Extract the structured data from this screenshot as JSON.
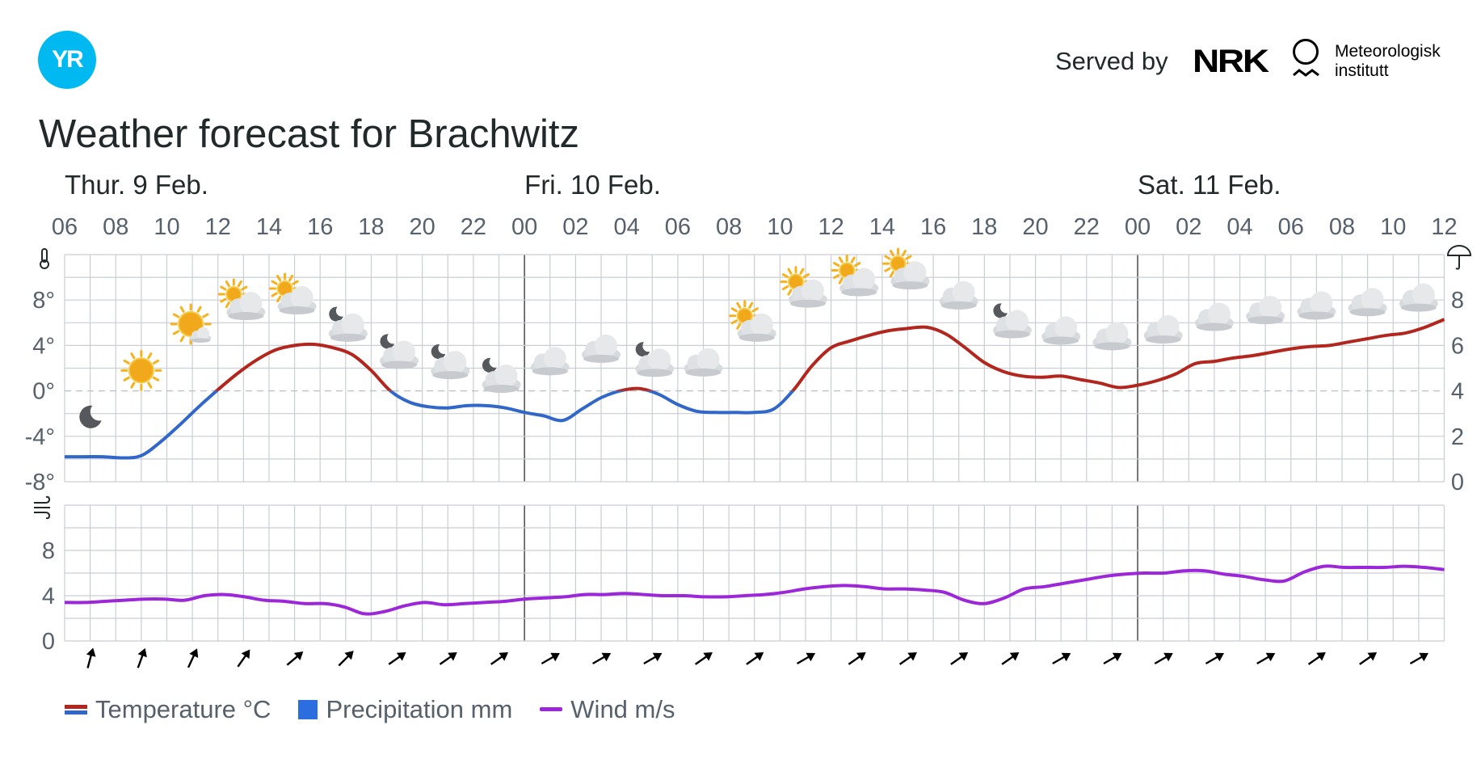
{
  "header": {
    "logo_text": "YR",
    "served_by": "Served by",
    "nrk_logo_text": "NRK",
    "met_line1": "Meteorologisk",
    "met_line2": "institutt"
  },
  "title": "Weather forecast for Brachwitz",
  "legend": [
    {
      "label": "Temperature °C",
      "colors": [
        "#b3261e",
        "#3067c8"
      ]
    },
    {
      "label": "Precipitation mm",
      "colors": [
        "#2c6de0"
      ]
    },
    {
      "label": "Wind m/s",
      "colors": [
        "#9c27d9"
      ]
    }
  ],
  "chart_data": {
    "type": "line",
    "days": [
      {
        "label": "Thur. 9 Feb.",
        "start_hour_index": 0
      },
      {
        "label": "Fri. 10 Feb.",
        "start_hour_index": 18
      },
      {
        "label": "Sat. 11 Feb.",
        "start_hour_index": 42
      }
    ],
    "hour_labels": [
      "06",
      "08",
      "10",
      "12",
      "14",
      "16",
      "18",
      "20",
      "22",
      "00",
      "02",
      "04",
      "06",
      "08",
      "10",
      "12",
      "14",
      "16",
      "18",
      "20",
      "22",
      "00",
      "02",
      "04",
      "06",
      "08",
      "10",
      "12"
    ],
    "temperature": {
      "axis_ticks": [
        "8°",
        "4°",
        "0°",
        "-4°",
        "-8°"
      ],
      "ylim": [
        -8,
        12
      ],
      "colors": {
        "above_zero": "#b3261e",
        "below_zero": "#3067c8"
      },
      "values": [
        -5.8,
        -5.8,
        -5.8,
        -5.9,
        -5.7,
        -4.5,
        -3.0,
        -1.4,
        0.1,
        1.5,
        2.7,
        3.6,
        4.0,
        4.1,
        3.8,
        3.2,
        1.8,
        0,
        -1.0,
        -1.4,
        -1.5,
        -1.3,
        -1.3,
        -1.5,
        -1.9,
        -2.2,
        -2.6,
        -1.6,
        -0.6,
        0,
        0.2,
        -0.3,
        -1.2,
        -1.8,
        -1.9,
        -1.9,
        -1.9,
        -1.6,
        0,
        2.2,
        3.8,
        4.4,
        4.9,
        5.3,
        5.5,
        5.6,
        5.0,
        3.8,
        2.5,
        1.7,
        1.3,
        1.2,
        1.3,
        1.0,
        0.7,
        0.3,
        0.5,
        0.9,
        1.5,
        2.4,
        2.6,
        2.9,
        3.1,
        3.4,
        3.7,
        3.9,
        4.0,
        4.3,
        4.6,
        4.9,
        5.1,
        5.6,
        6.3
      ]
    },
    "precipitation": {
      "axis_ticks": [
        "8",
        "6",
        "4",
        "2",
        "0"
      ],
      "ylim": [
        0,
        10
      ]
    },
    "symbols": [
      {
        "hour_index": 1,
        "type": "clear-night",
        "temp": -3.3
      },
      {
        "hour_index": 3,
        "type": "clear-day",
        "temp": 0.8
      },
      {
        "hour_index": 5,
        "type": "fair-day",
        "temp": 4.6
      },
      {
        "hour_index": 7,
        "type": "partly-cloudy-day",
        "temp": 6.8
      },
      {
        "hour_index": 9,
        "type": "partly-cloudy-day",
        "temp": 7.3
      },
      {
        "hour_index": 11,
        "type": "partly-cloudy-night",
        "temp": 4.9
      },
      {
        "hour_index": 13,
        "type": "partly-cloudy-night",
        "temp": 2.5
      },
      {
        "hour_index": 15,
        "type": "partly-cloudy-night",
        "temp": 1.6
      },
      {
        "hour_index": 17,
        "type": "partly-cloudy-night",
        "temp": 0.4
      },
      {
        "hour_index": 19,
        "type": "cloudy",
        "temp": 1.8
      },
      {
        "hour_index": 21,
        "type": "cloudy",
        "temp": 2.9
      },
      {
        "hour_index": 23,
        "type": "partly-cloudy-night",
        "temp": 1.8
      },
      {
        "hour_index": 25,
        "type": "cloudy",
        "temp": 1.7
      },
      {
        "hour_index": 27,
        "type": "partly-cloudy-day",
        "temp": 4.9
      },
      {
        "hour_index": 29,
        "type": "partly-cloudy-day",
        "temp": 7.9
      },
      {
        "hour_index": 31,
        "type": "partly-cloudy-day",
        "temp": 8.9
      },
      {
        "hour_index": 33,
        "type": "partly-cloudy-day",
        "temp": 9.5
      },
      {
        "hour_index": 35,
        "type": "cloudy",
        "temp": 7.6
      },
      {
        "hour_index": 37,
        "type": "partly-cloudy-night",
        "temp": 5.2
      },
      {
        "hour_index": 39,
        "type": "cloudy",
        "temp": 4.5
      },
      {
        "hour_index": 41,
        "type": "cloudy",
        "temp": 4.0
      },
      {
        "hour_index": 43,
        "type": "cloudy",
        "temp": 4.6
      },
      {
        "hour_index": 45,
        "type": "cloudy",
        "temp": 5.7
      },
      {
        "hour_index": 47,
        "type": "cloudy",
        "temp": 6.3
      },
      {
        "hour_index": 49,
        "type": "cloudy",
        "temp": 6.7
      },
      {
        "hour_index": 51,
        "type": "cloudy",
        "temp": 7.0
      },
      {
        "hour_index": 53,
        "type": "cloudy",
        "temp": 7.4
      }
    ],
    "wind": {
      "axis_ticks": [
        "8",
        "4",
        "0"
      ],
      "ylim": [
        0,
        12
      ],
      "color": "#9c27d9",
      "values": [
        3.4,
        3.4,
        3.5,
        3.6,
        3.7,
        3.7,
        3.6,
        4.0,
        4.1,
        3.9,
        3.6,
        3.5,
        3.3,
        3.3,
        3.0,
        2.4,
        2.6,
        3.1,
        3.4,
        3.2,
        3.3,
        3.4,
        3.5,
        3.7,
        3.8,
        3.9,
        4.1,
        4.1,
        4.2,
        4.1,
        4.0,
        4.0,
        3.9,
        3.9,
        4.0,
        4.1,
        4.3,
        4.6,
        4.8,
        4.9,
        4.8,
        4.6,
        4.6,
        4.5,
        4.3,
        3.6,
        3.3,
        3.8,
        4.6,
        4.8,
        5.1,
        5.4,
        5.7,
        5.9,
        6.0,
        6.0,
        6.2,
        6.2,
        5.9,
        5.7,
        5.4,
        5.3,
        6.1,
        6.6,
        6.5,
        6.5,
        6.5,
        6.6,
        6.5,
        6.3
      ]
    },
    "wind_directions_deg": [
      15,
      20,
      25,
      35,
      50,
      45,
      55,
      55,
      55,
      60,
      60,
      60,
      55,
      55,
      60,
      55,
      55,
      55,
      55,
      60,
      60,
      60,
      60,
      60,
      55,
      55,
      60
    ],
    "wind_direction_hour_indices": [
      1,
      3,
      5,
      7,
      9,
      11,
      13,
      15,
      17,
      19,
      21,
      23,
      25,
      27,
      29,
      31,
      33,
      35,
      37,
      39,
      41,
      43,
      45,
      47,
      49,
      51,
      53
    ]
  }
}
